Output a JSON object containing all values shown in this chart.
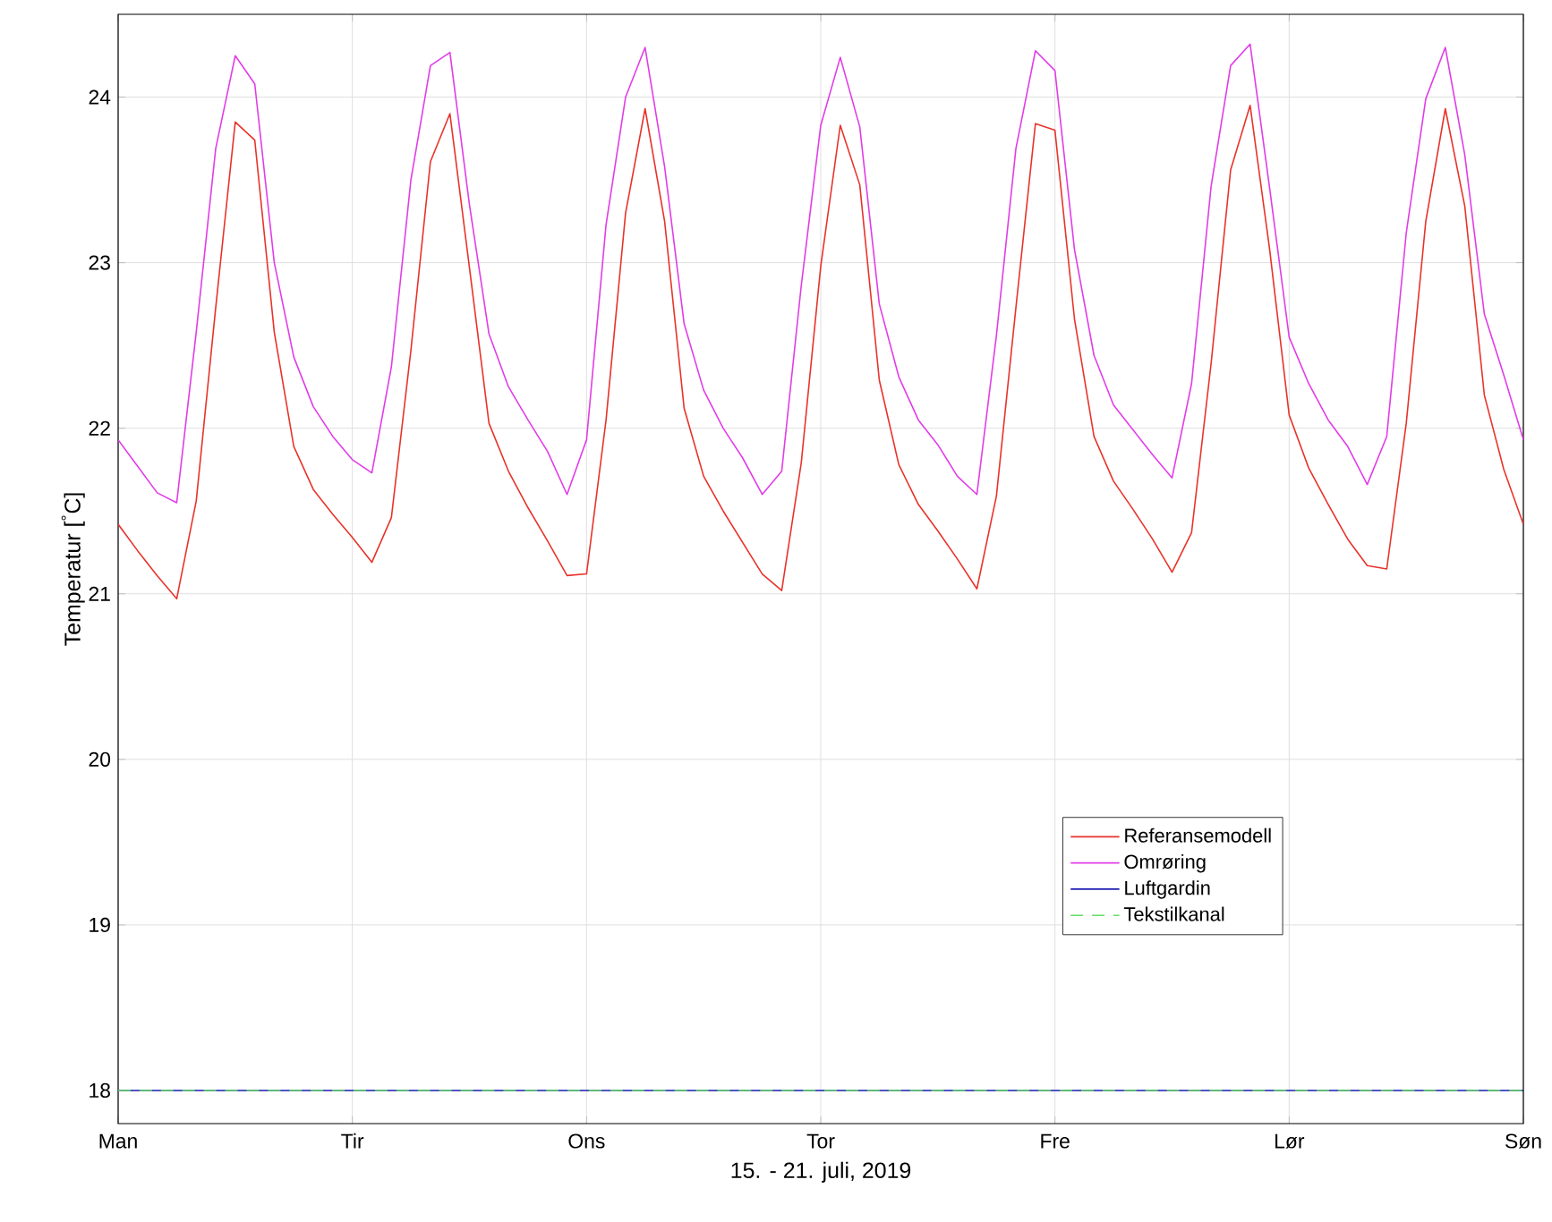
{
  "chart_data": {
    "type": "line",
    "xlabel": "15. - 21. juli, 2019",
    "ylabel": "Temperatur [$^{°}$C]",
    "categories": [
      "Man",
      null,
      null,
      null,
      null,
      null,
      null,
      null,
      null,
      null,
      null,
      null,
      "Tir",
      null,
      null,
      null,
      null,
      null,
      null,
      null,
      null,
      null,
      null,
      null,
      "Ons",
      null,
      null,
      null,
      null,
      null,
      null,
      null,
      null,
      null,
      null,
      null,
      "Tor",
      null,
      null,
      null,
      null,
      null,
      null,
      null,
      null,
      null,
      null,
      null,
      "Fre",
      null,
      null,
      null,
      null,
      null,
      null,
      null,
      null,
      null,
      null,
      null,
      "Lør",
      null,
      null,
      null,
      null,
      null,
      null,
      null,
      null,
      null,
      null,
      null,
      "Søn"
    ],
    "ylim": [
      17.8,
      24.5
    ],
    "yticks": [
      18,
      19,
      20,
      21,
      22,
      23,
      24
    ],
    "grid": true,
    "legend": "right",
    "marker": "none",
    "series": [
      {
        "name": "Referansemodell",
        "color": "#e8332a",
        "line_style": "solid",
        "values": [
          21.42,
          21.26,
          21.11,
          20.97,
          21.56,
          22.73,
          23.85,
          23.74,
          22.58,
          21.89,
          21.63,
          21.48,
          21.34,
          21.19,
          21.46,
          22.47,
          23.61,
          23.9,
          22.97,
          22.03,
          21.74,
          21.52,
          21.32,
          21.11,
          21.12,
          22.05,
          23.3,
          23.93,
          23.25,
          22.12,
          21.71,
          21.5,
          21.31,
          21.12,
          21.02,
          21.79,
          22.98,
          23.83,
          23.47,
          22.29,
          21.78,
          21.54,
          21.38,
          21.21,
          21.03,
          21.59,
          22.73,
          23.84,
          23.8,
          22.66,
          21.95,
          21.68,
          21.51,
          21.33,
          21.13,
          21.37,
          22.39,
          23.56,
          23.95,
          23.08,
          22.08,
          21.76,
          21.54,
          21.33,
          21.17,
          21.15,
          22.03,
          23.25,
          23.93,
          23.34,
          22.2,
          21.75,
          21.42
        ]
      },
      {
        "name": "Omrøring",
        "color": "#e23ce8",
        "line_style": "solid",
        "values": [
          21.93,
          21.77,
          21.61,
          21.55,
          22.58,
          23.69,
          24.25,
          24.08,
          23.0,
          22.43,
          22.13,
          21.95,
          21.81,
          21.73,
          22.37,
          23.5,
          24.19,
          24.27,
          23.35,
          22.57,
          22.25,
          22.05,
          21.86,
          21.6,
          21.93,
          23.23,
          24.0,
          24.3,
          23.58,
          22.63,
          22.23,
          22.0,
          21.82,
          21.6,
          21.74,
          22.86,
          23.83,
          24.24,
          23.82,
          22.75,
          22.31,
          22.05,
          21.9,
          21.71,
          21.6,
          22.56,
          23.69,
          24.28,
          24.16,
          23.08,
          22.44,
          22.14,
          21.99,
          21.84,
          21.7,
          22.27,
          23.46,
          24.19,
          24.32,
          23.45,
          22.55,
          22.27,
          22.05,
          21.89,
          21.66,
          21.95,
          23.18,
          23.99,
          24.3,
          23.65,
          22.69,
          22.32,
          21.93
        ]
      },
      {
        "name": "Luftgardin",
        "color": "#1f1fb4",
        "line_style": "solid",
        "values": [
          18,
          18,
          18,
          18,
          18,
          18,
          18,
          18,
          18,
          18,
          18,
          18,
          18,
          18,
          18,
          18,
          18,
          18,
          18,
          18,
          18,
          18,
          18,
          18,
          18,
          18,
          18,
          18,
          18,
          18,
          18,
          18,
          18,
          18,
          18,
          18,
          18,
          18,
          18,
          18,
          18,
          18,
          18,
          18,
          18,
          18,
          18,
          18,
          18,
          18,
          18,
          18,
          18,
          18,
          18,
          18,
          18,
          18,
          18,
          18,
          18,
          18,
          18,
          18,
          18,
          18,
          18,
          18,
          18,
          18,
          18,
          18,
          18
        ]
      },
      {
        "name": "Tekstilkanal",
        "color": "#66dd66",
        "line_style": "dashed",
        "values": [
          18,
          18,
          18,
          18,
          18,
          18,
          18,
          18,
          18,
          18,
          18,
          18,
          18,
          18,
          18,
          18,
          18,
          18,
          18,
          18,
          18,
          18,
          18,
          18,
          18,
          18,
          18,
          18,
          18,
          18,
          18,
          18,
          18,
          18,
          18,
          18,
          18,
          18,
          18,
          18,
          18,
          18,
          18,
          18,
          18,
          18,
          18,
          18,
          18,
          18,
          18,
          18,
          18,
          18,
          18,
          18,
          18,
          18,
          18,
          18,
          18,
          18,
          18,
          18,
          18,
          18,
          18,
          18,
          18,
          18,
          18,
          18,
          18
        ]
      }
    ]
  }
}
